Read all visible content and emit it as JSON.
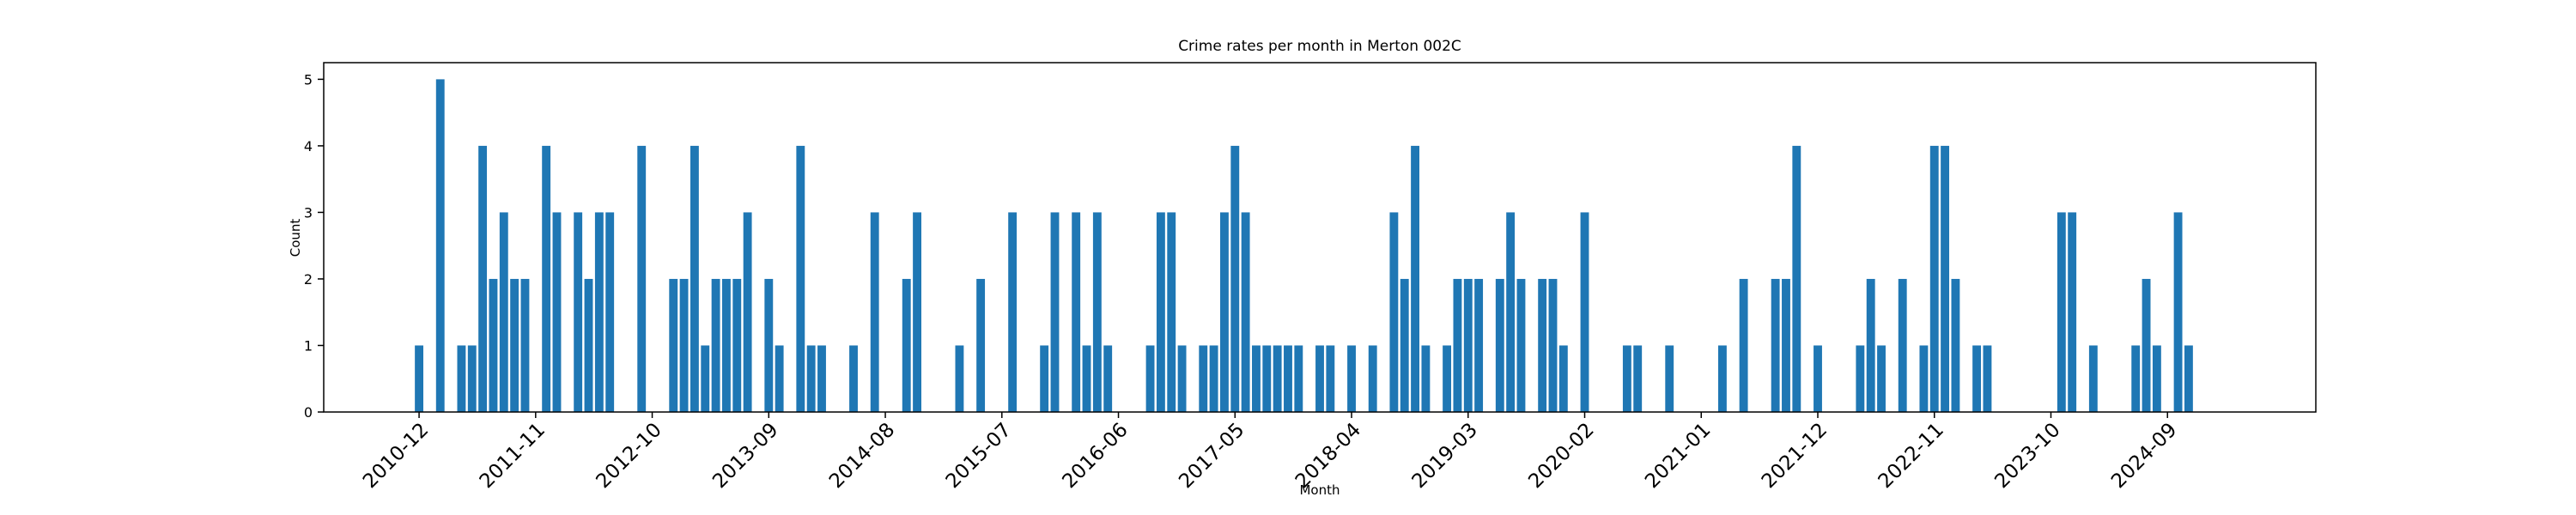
{
  "chart_data": {
    "type": "bar",
    "title": "Crime rates per month in Merton 002C",
    "x_label": "Month",
    "y_label": "Count",
    "color": "#1f77b4",
    "x": [
      "2010-12",
      "2011-02",
      "2011-04",
      "2011-05",
      "2011-06",
      "2011-07",
      "2011-08",
      "2011-09",
      "2011-10",
      "2011-12",
      "2012-01",
      "2012-03",
      "2012-04",
      "2012-05",
      "2012-06",
      "2012-09",
      "2012-12",
      "2013-01",
      "2013-02",
      "2013-03",
      "2013-04",
      "2013-05",
      "2013-06",
      "2013-07",
      "2013-09",
      "2013-10",
      "2013-12",
      "2014-01",
      "2014-02",
      "2014-05",
      "2014-07",
      "2014-10",
      "2014-11",
      "2015-03",
      "2015-05",
      "2015-08",
      "2015-11",
      "2015-12",
      "2016-02",
      "2016-03",
      "2016-04",
      "2016-05",
      "2016-09",
      "2016-10",
      "2016-11",
      "2016-12",
      "2017-02",
      "2017-03",
      "2017-04",
      "2017-05",
      "2017-06",
      "2017-07",
      "2017-08",
      "2017-09",
      "2017-10",
      "2017-11",
      "2018-01",
      "2018-02",
      "2018-04",
      "2018-06",
      "2018-08",
      "2018-09",
      "2018-10",
      "2018-11",
      "2019-01",
      "2019-02",
      "2019-03",
      "2019-04",
      "2019-06",
      "2019-07",
      "2019-08",
      "2019-10",
      "2019-11",
      "2019-12",
      "2020-02",
      "2020-06",
      "2020-07",
      "2020-10",
      "2021-03",
      "2021-05",
      "2021-08",
      "2021-09",
      "2021-10",
      "2021-12",
      "2022-04",
      "2022-05",
      "2022-06",
      "2022-08",
      "2022-10",
      "2022-11",
      "2022-12",
      "2023-01",
      "2023-03",
      "2023-04",
      "2023-11",
      "2023-12",
      "2024-02",
      "2024-06",
      "2024-07",
      "2024-08",
      "2024-10",
      "2024-11"
    ],
    "values": [
      1,
      5,
      1,
      1,
      4,
      2,
      3,
      2,
      2,
      4,
      3,
      3,
      2,
      3,
      3,
      4,
      2,
      2,
      4,
      1,
      2,
      2,
      2,
      3,
      2,
      1,
      4,
      1,
      1,
      1,
      3,
      2,
      3,
      1,
      2,
      3,
      1,
      3,
      3,
      1,
      3,
      1,
      1,
      3,
      3,
      1,
      1,
      1,
      3,
      4,
      3,
      1,
      1,
      1,
      1,
      1,
      1,
      1,
      1,
      1,
      3,
      2,
      4,
      1,
      1,
      2,
      2,
      2,
      2,
      3,
      2,
      2,
      2,
      1,
      3,
      1,
      1,
      1,
      1,
      2,
      2,
      2,
      4,
      1,
      1,
      2,
      1,
      2,
      1,
      4,
      4,
      2,
      1,
      1,
      3,
      3,
      1,
      1,
      2,
      1,
      3,
      1
    ],
    "xlim": [
      "2010-03",
      "2025-11"
    ],
    "xticks": [
      "2010-12",
      "2011-11",
      "2012-10",
      "2013-09",
      "2014-08",
      "2015-07",
      "2016-06",
      "2017-05",
      "2018-04",
      "2019-03",
      "2020-02",
      "2021-01",
      "2021-12",
      "2022-11",
      "2023-10",
      "2024-09"
    ],
    "ylim": [
      0,
      5.25
    ],
    "yticks": [
      0,
      1,
      2,
      3,
      4,
      5
    ]
  }
}
